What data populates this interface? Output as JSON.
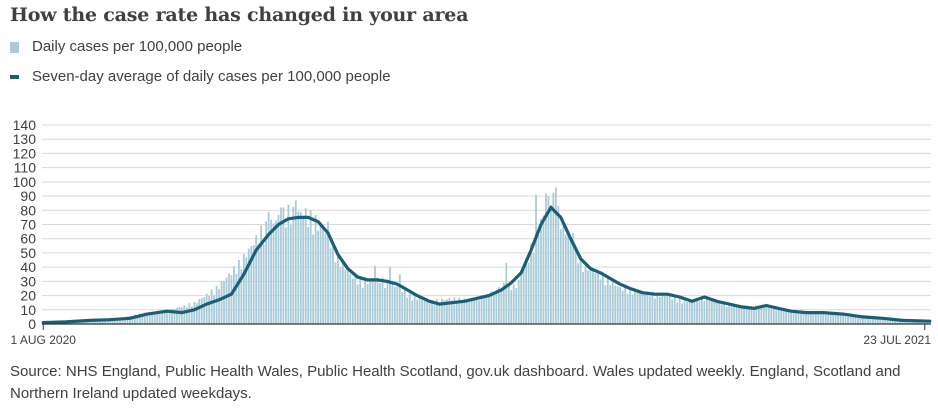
{
  "title": "How the case rate has changed in your area",
  "legend": {
    "bars_label": "Daily cases per 100,000 people",
    "line_label": "Seven-day average of daily cases per 100,000 people"
  },
  "colors": {
    "bars": "#a9cbd8",
    "line": "#1b5f76",
    "grid": "#d9d9d9",
    "axis": "#333333",
    "text": "#404040"
  },
  "source": "Source: NHS England, Public Health Wales, Public Health Scotland, gov.uk dashboard. Wales updated weekly. England, Scotland and Northern Ireland updated weekdays.",
  "chart_data": {
    "type": "bar+line",
    "x_start": "2020-08-01",
    "x_end": "2021-07-25",
    "x_tick_labels": [
      {
        "date": "2020-08-01",
        "label": "1 AUG 2020"
      },
      {
        "date": "2021-07-23",
        "label": "23 JUL 2021"
      }
    ],
    "ylim": [
      0,
      140
    ],
    "y_ticks": [
      0,
      10,
      20,
      30,
      40,
      50,
      60,
      70,
      80,
      90,
      100,
      110,
      120,
      130,
      140
    ],
    "grid": true,
    "series": [
      {
        "kind": "bar",
        "anchors": [
          [
            "2020-08-01",
            1
          ],
          [
            "2020-08-15",
            2
          ],
          [
            "2020-09-01",
            4
          ],
          [
            "2020-09-10",
            7
          ],
          [
            "2020-09-20",
            9
          ],
          [
            "2020-10-01",
            14
          ],
          [
            "2020-10-10",
            24
          ],
          [
            "2020-10-20",
            42
          ],
          [
            "2020-10-28",
            62
          ],
          [
            "2020-11-03",
            70
          ],
          [
            "2020-11-07",
            75
          ],
          [
            "2020-11-15",
            74
          ],
          [
            "2020-11-22",
            65
          ],
          [
            "2020-11-28",
            45
          ],
          [
            "2020-12-03",
            33
          ],
          [
            "2020-12-08",
            28
          ],
          [
            "2020-12-15",
            30
          ],
          [
            "2020-12-22",
            25
          ],
          [
            "2020-12-28",
            18
          ],
          [
            "2021-01-05",
            15
          ],
          [
            "2021-01-12",
            17
          ],
          [
            "2021-01-20",
            16
          ],
          [
            "2021-01-27",
            19
          ],
          [
            "2021-02-03",
            26
          ],
          [
            "2021-02-08",
            25
          ],
          [
            "2021-02-15",
            55
          ],
          [
            "2021-02-22",
            87
          ],
          [
            "2021-02-28",
            62
          ],
          [
            "2021-03-07",
            40
          ],
          [
            "2021-03-15",
            32
          ],
          [
            "2021-03-22",
            24
          ],
          [
            "2021-04-01",
            21
          ],
          [
            "2021-04-10",
            19
          ],
          [
            "2021-04-17",
            15
          ],
          [
            "2021-04-25",
            18
          ],
          [
            "2021-05-03",
            14
          ],
          [
            "2021-05-12",
            11
          ],
          [
            "2021-05-20",
            12
          ],
          [
            "2021-06-01",
            9
          ],
          [
            "2021-06-15",
            7
          ],
          [
            "2021-07-01",
            4
          ],
          [
            "2021-07-15",
            2
          ],
          [
            "2021-07-25",
            2
          ]
        ],
        "spikes": [
          [
            "2020-10-31",
            79
          ],
          [
            "2020-11-05",
            82
          ],
          [
            "2020-11-11",
            87
          ],
          [
            "2020-11-24",
            72
          ],
          [
            "2020-12-13",
            41
          ],
          [
            "2020-12-19",
            40
          ],
          [
            "2020-12-23",
            35
          ],
          [
            "2021-01-26",
            20
          ],
          [
            "2021-02-04",
            43
          ],
          [
            "2021-02-16",
            91
          ],
          [
            "2021-02-20",
            92
          ],
          [
            "2021-02-24",
            96
          ],
          [
            "2021-03-03",
            64
          ]
        ]
      },
      {
        "kind": "line",
        "values": [
          [
            [
              "2020-08-01",
              1
            ],
            [
              "2020-08-10",
              1.5
            ],
            [
              "2020-08-20",
              2.5
            ],
            [
              "2020-08-28",
              3
            ],
            [
              "2020-09-05",
              4
            ],
            [
              "2020-09-12",
              7
            ],
            [
              "2020-09-20",
              9
            ],
            [
              "2020-09-26",
              8
            ],
            [
              "2020-10-01",
              10
            ],
            [
              "2020-10-06",
              14
            ],
            [
              "2020-10-11",
              17
            ],
            [
              "2020-10-16",
              21
            ],
            [
              "2020-10-21",
              35
            ],
            [
              "2020-10-26",
              52
            ],
            [
              "2020-10-31",
              63
            ],
            [
              "2020-11-04",
              70
            ],
            [
              "2020-11-08",
              74
            ],
            [
              "2020-11-12",
              75
            ],
            [
              "2020-11-16",
              75
            ],
            [
              "2020-11-20",
              72
            ],
            [
              "2020-11-24",
              64
            ],
            [
              "2020-11-28",
              49
            ],
            [
              "2020-12-02",
              39
            ],
            [
              "2020-12-06",
              33
            ],
            [
              "2020-12-10",
              31
            ],
            [
              "2020-12-14",
              31
            ],
            [
              "2020-12-18",
              30
            ],
            [
              "2020-12-22",
              28
            ],
            [
              "2020-12-26",
              24
            ],
            [
              "2020-12-30",
              20
            ],
            [
              "2021-01-04",
              16
            ],
            [
              "2021-01-08",
              14
            ],
            [
              "2021-01-13",
              15
            ],
            [
              "2021-01-18",
              16
            ],
            [
              "2021-01-23",
              18
            ],
            [
              "2021-01-28",
              20
            ],
            [
              "2021-02-02",
              24
            ],
            [
              "2021-02-06",
              29
            ],
            [
              "2021-02-10",
              36
            ],
            [
              "2021-02-14",
              52
            ],
            [
              "2021-02-18",
              70
            ],
            [
              "2021-02-22",
              82
            ],
            [
              "2021-02-26",
              75
            ],
            [
              "2021-03-02",
              60
            ],
            [
              "2021-03-06",
              46
            ],
            [
              "2021-03-10",
              39
            ],
            [
              "2021-03-14",
              36
            ],
            [
              "2021-03-18",
              32
            ],
            [
              "2021-03-22",
              28
            ],
            [
              "2021-03-26",
              25
            ],
            [
              "2021-03-31",
              22
            ],
            [
              "2021-04-05",
              21
            ],
            [
              "2021-04-10",
              21
            ],
            [
              "2021-04-15",
              19
            ],
            [
              "2021-04-20",
              16
            ],
            [
              "2021-04-25",
              19
            ],
            [
              "2021-04-30",
              16
            ],
            [
              "2021-05-05",
              14
            ],
            [
              "2021-05-10",
              12
            ],
            [
              "2021-05-15",
              11
            ],
            [
              "2021-05-20",
              13
            ],
            [
              "2021-05-25",
              11
            ],
            [
              "2021-05-30",
              9
            ],
            [
              "2021-06-05",
              8
            ],
            [
              "2021-06-12",
              8
            ],
            [
              "2021-06-20",
              7
            ],
            [
              "2021-06-28",
              5
            ],
            [
              "2021-07-06",
              4
            ],
            [
              "2021-07-14",
              2.5
            ],
            [
              "2021-07-25",
              2
            ]
          ]
        ]
      }
    ]
  }
}
